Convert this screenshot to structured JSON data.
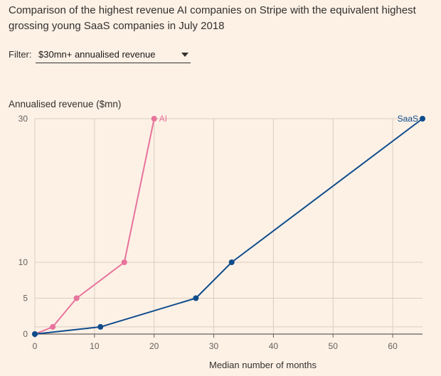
{
  "title": "Comparison of the highest revenue AI companies on Stripe with the equivalent highest grossing young SaaS companies in July 2018",
  "filter": {
    "label": "Filter:",
    "value": "$30mn+ annualised revenue"
  },
  "colors": {
    "ai": "#e8739c",
    "saas": "#0f4c8c",
    "grid": "#d9cdc2",
    "axis": "#66605c"
  },
  "chart_data": {
    "type": "line",
    "ylabel": "Annualised revenue ($mn)",
    "xlabel": "Median number of months",
    "xlim": [
      0,
      65
    ],
    "ylim": [
      0,
      30
    ],
    "xticks": [
      0,
      10,
      20,
      30,
      40,
      50,
      60
    ],
    "yticks": [
      0,
      5,
      10,
      30
    ],
    "grid": true,
    "series": [
      {
        "name": "AI",
        "key": "ai",
        "points": [
          [
            0,
            0
          ],
          [
            3,
            1
          ],
          [
            7,
            5
          ],
          [
            15,
            10
          ],
          [
            20,
            30
          ]
        ]
      },
      {
        "name": "SaaS",
        "key": "saas",
        "points": [
          [
            0,
            0
          ],
          [
            11,
            1
          ],
          [
            27,
            5
          ],
          [
            33,
            10
          ],
          [
            65,
            30
          ]
        ]
      }
    ]
  }
}
